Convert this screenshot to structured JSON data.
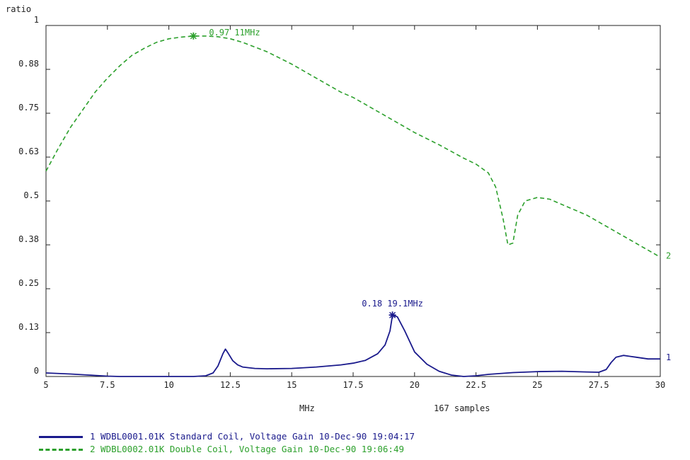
{
  "chart_data": {
    "type": "line",
    "ylabel": "ratio",
    "xlabel": "MHz",
    "sample_note": "167 samples",
    "xlim": [
      5,
      30
    ],
    "ylim": [
      0,
      1
    ],
    "xticks": [
      5,
      7.5,
      10,
      12.5,
      15,
      17.5,
      20,
      22.5,
      25,
      27.5,
      30
    ],
    "xtick_labels": [
      "5",
      "7.5",
      "10",
      "12.5",
      "15",
      "17.5",
      "20",
      "22.5",
      "25",
      "27.5",
      "30"
    ],
    "yticks": [
      0,
      0.125,
      0.25,
      0.375,
      0.5,
      0.625,
      0.75,
      0.875,
      1
    ],
    "ytick_labels": [
      "0",
      "0.13",
      "0.25",
      "0.38",
      "0.5",
      "0.63",
      "0.75",
      "0.88",
      "1"
    ],
    "grid": false,
    "series": [
      {
        "id": "1",
        "end_label": "1",
        "name": "1 WDBL0001.01K Standard Coil, Voltage Gain 10-Dec-90 19:04:17",
        "color": "#1a1a8c",
        "style": "solid",
        "x": [
          5,
          6,
          7,
          7.5,
          8,
          9,
          10,
          11,
          11.5,
          11.8,
          12.0,
          12.2,
          12.3,
          12.4,
          12.6,
          12.8,
          13.0,
          13.5,
          14,
          15,
          16,
          17,
          17.5,
          18,
          18.5,
          18.8,
          19.0,
          19.1,
          19.3,
          19.6,
          20,
          20.5,
          21,
          21.5,
          22,
          22.5,
          23,
          24,
          25,
          26,
          27,
          27.5,
          27.8,
          28.0,
          28.2,
          28.5,
          29,
          29.5,
          30
        ],
        "y": [
          0.01,
          0.007,
          0.003,
          0.001,
          0.0,
          0.0,
          0.0,
          0.0,
          0.002,
          0.01,
          0.03,
          0.065,
          0.078,
          0.068,
          0.045,
          0.033,
          0.027,
          0.023,
          0.022,
          0.023,
          0.027,
          0.033,
          0.038,
          0.046,
          0.065,
          0.09,
          0.13,
          0.175,
          0.17,
          0.13,
          0.07,
          0.035,
          0.015,
          0.004,
          0.0,
          0.002,
          0.006,
          0.011,
          0.014,
          0.015,
          0.013,
          0.012,
          0.02,
          0.04,
          0.055,
          0.06,
          0.055,
          0.05,
          0.05
        ],
        "peak_marker": {
          "x": 19.1,
          "y": 0.175,
          "label": "0.18  19.1MHz"
        }
      },
      {
        "id": "2",
        "end_label": "2",
        "name": "2 WDBL0002.01K Double Coil, Voltage Gain 10-Dec-90 19:06:49",
        "color": "#2ca02c",
        "style": "dashed",
        "x": [
          5,
          5.5,
          6,
          6.5,
          7,
          7.5,
          8,
          8.5,
          9,
          9.5,
          10,
          10.5,
          11,
          11.5,
          12,
          12.5,
          13,
          14,
          15,
          16,
          17,
          17.5,
          18,
          19,
          20,
          21,
          22,
          22.5,
          23,
          23.3,
          23.6,
          23.8,
          24.0,
          24.2,
          24.5,
          25,
          25.5,
          26,
          27,
          28,
          29,
          30
        ],
        "y": [
          0.585,
          0.65,
          0.71,
          0.76,
          0.81,
          0.85,
          0.885,
          0.915,
          0.935,
          0.952,
          0.962,
          0.967,
          0.97,
          0.97,
          0.968,
          0.962,
          0.952,
          0.925,
          0.89,
          0.85,
          0.81,
          0.795,
          0.775,
          0.735,
          0.695,
          0.66,
          0.622,
          0.605,
          0.58,
          0.54,
          0.45,
          0.375,
          0.38,
          0.46,
          0.5,
          0.51,
          0.505,
          0.49,
          0.46,
          0.42,
          0.38,
          0.34
        ],
        "peak_marker": {
          "x": 11.0,
          "y": 0.97,
          "label": "0.97  11MHz"
        }
      }
    ],
    "legend_position": "bottom-left"
  }
}
